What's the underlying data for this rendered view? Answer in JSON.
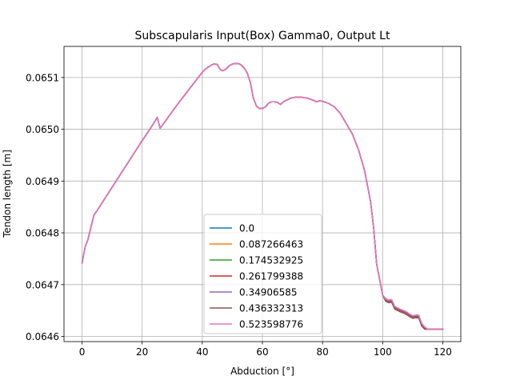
{
  "chart_data": {
    "type": "line",
    "title": "Subscapularis Input(Box) Gamma0, Output Lt",
    "xlabel": "Abduction [°]",
    "ylabel": "Tendon length [m]",
    "xlim": [
      -6,
      126
    ],
    "ylim": [
      0.06459,
      0.06516
    ],
    "xticks": [
      0,
      20,
      40,
      60,
      80,
      100,
      120
    ],
    "xtick_labels": [
      "0",
      "20",
      "40",
      "60",
      "80",
      "100",
      "120"
    ],
    "yticks": [
      0.0646,
      0.0647,
      0.0648,
      0.0649,
      0.065,
      0.0651
    ],
    "ytick_labels": [
      "0.0646",
      "0.0647",
      "0.0648",
      "0.0649",
      "0.0650",
      "0.0651"
    ],
    "grid": true,
    "legend_position": "lower-center",
    "x": [
      0,
      1,
      2,
      3,
      4,
      5,
      6,
      8,
      10,
      12,
      14,
      16,
      18,
      20,
      22,
      24,
      25,
      26,
      27,
      28,
      30,
      32,
      34,
      36,
      38,
      40,
      41,
      42,
      43,
      44,
      45,
      46,
      47,
      48,
      49,
      50,
      51,
      52,
      53,
      54,
      55,
      56,
      57,
      58,
      59,
      60,
      61,
      62,
      63,
      64,
      65,
      66,
      67,
      68,
      69,
      70,
      71,
      72,
      73,
      74,
      75,
      76,
      77,
      78,
      79,
      80,
      82,
      84,
      86,
      88,
      90,
      92,
      94,
      95,
      96,
      97,
      98,
      99,
      100,
      101,
      102,
      103,
      104,
      105,
      106,
      107,
      108,
      109,
      110,
      111,
      112,
      113,
      114,
      115,
      116,
      117,
      118,
      119,
      120
    ],
    "series": [
      {
        "name": "0.0",
        "color": "#1f77b4",
        "values": [
          0.064742,
          0.064772,
          0.064788,
          0.064812,
          0.064835,
          0.064843,
          0.064852,
          0.06487,
          0.064888,
          0.064906,
          0.064924,
          0.064942,
          0.06496,
          0.064978,
          0.064995,
          0.065013,
          0.065023,
          0.065002,
          0.06501,
          0.065018,
          0.065034,
          0.06505,
          0.065065,
          0.06508,
          0.065095,
          0.06511,
          0.065116,
          0.06512,
          0.065124,
          0.065126,
          0.065125,
          0.065115,
          0.065113,
          0.065117,
          0.065123,
          0.065126,
          0.065127,
          0.065127,
          0.065124,
          0.065118,
          0.065108,
          0.06509,
          0.06506,
          0.065045,
          0.06504,
          0.06504,
          0.065043,
          0.06505,
          0.065053,
          0.065053,
          0.065052,
          0.065048,
          0.065053,
          0.065056,
          0.065059,
          0.065061,
          0.065062,
          0.065062,
          0.065062,
          0.065061,
          0.06506,
          0.065058,
          0.065056,
          0.065053,
          0.065055,
          0.065054,
          0.06505,
          0.065043,
          0.06503,
          0.06501,
          0.06499,
          0.06496,
          0.06492,
          0.06489,
          0.06486,
          0.06481,
          0.06474,
          0.06471,
          0.06468,
          0.064673,
          0.06467,
          0.064671,
          0.064658,
          0.064655,
          0.064652,
          0.06465,
          0.064647,
          0.064643,
          0.06464,
          0.064641,
          0.064641,
          0.064625,
          0.064618,
          0.064614,
          0.064614,
          0.064614,
          0.064614,
          0.064614,
          0.064614
        ]
      },
      {
        "name": "0.087266463",
        "color": "#ff7f0e",
        "values": [
          0.064742,
          0.064772,
          0.064788,
          0.064812,
          0.064835,
          0.064843,
          0.064852,
          0.06487,
          0.064888,
          0.064906,
          0.064924,
          0.064942,
          0.06496,
          0.064978,
          0.064995,
          0.065013,
          0.065023,
          0.065002,
          0.06501,
          0.065018,
          0.065034,
          0.06505,
          0.065065,
          0.06508,
          0.065095,
          0.06511,
          0.065116,
          0.06512,
          0.065124,
          0.065126,
          0.065125,
          0.065115,
          0.065113,
          0.065117,
          0.065123,
          0.065126,
          0.065127,
          0.065127,
          0.065124,
          0.065118,
          0.065108,
          0.06509,
          0.06506,
          0.065045,
          0.06504,
          0.06504,
          0.065043,
          0.06505,
          0.065053,
          0.065053,
          0.065052,
          0.065048,
          0.065053,
          0.065056,
          0.065059,
          0.065061,
          0.065062,
          0.065062,
          0.065062,
          0.065061,
          0.06506,
          0.065058,
          0.065056,
          0.065053,
          0.065055,
          0.065054,
          0.06505,
          0.065043,
          0.06503,
          0.06501,
          0.06499,
          0.06496,
          0.06492,
          0.06489,
          0.06486,
          0.06481,
          0.06474,
          0.06471,
          0.06468,
          0.064672,
          0.064669,
          0.06467,
          0.064657,
          0.064654,
          0.064651,
          0.064649,
          0.064646,
          0.064642,
          0.064639,
          0.06464,
          0.06464,
          0.064624,
          0.064617,
          0.064614,
          0.064614,
          0.064614,
          0.064614,
          0.064614,
          0.064614
        ]
      },
      {
        "name": "0.174532925",
        "color": "#2ca02c",
        "values": [
          0.064742,
          0.064772,
          0.064788,
          0.064812,
          0.064835,
          0.064843,
          0.064852,
          0.06487,
          0.064888,
          0.064906,
          0.064924,
          0.064942,
          0.06496,
          0.064978,
          0.064995,
          0.065013,
          0.065023,
          0.065002,
          0.06501,
          0.065018,
          0.065034,
          0.06505,
          0.065065,
          0.06508,
          0.065095,
          0.06511,
          0.065116,
          0.06512,
          0.065124,
          0.065126,
          0.065125,
          0.065115,
          0.065113,
          0.065117,
          0.065123,
          0.065126,
          0.065127,
          0.065127,
          0.065124,
          0.065118,
          0.065108,
          0.06509,
          0.06506,
          0.065045,
          0.06504,
          0.06504,
          0.065043,
          0.06505,
          0.065053,
          0.065053,
          0.065052,
          0.065048,
          0.065053,
          0.065056,
          0.065059,
          0.065061,
          0.065062,
          0.065062,
          0.065062,
          0.065061,
          0.06506,
          0.065058,
          0.065056,
          0.065053,
          0.065055,
          0.065054,
          0.06505,
          0.065043,
          0.06503,
          0.06501,
          0.06499,
          0.06496,
          0.06492,
          0.06489,
          0.06486,
          0.06481,
          0.06474,
          0.06471,
          0.06468,
          0.064671,
          0.064668,
          0.064669,
          0.064656,
          0.064653,
          0.06465,
          0.064648,
          0.064645,
          0.064641,
          0.064638,
          0.064639,
          0.064639,
          0.064623,
          0.064616,
          0.064614,
          0.064614,
          0.064614,
          0.064614,
          0.064614,
          0.064614
        ]
      },
      {
        "name": "0.261799388",
        "color": "#d62728",
        "values": [
          0.064742,
          0.064772,
          0.064788,
          0.064812,
          0.064835,
          0.064843,
          0.064852,
          0.06487,
          0.064888,
          0.064906,
          0.064924,
          0.064942,
          0.06496,
          0.064978,
          0.064995,
          0.065013,
          0.065023,
          0.065002,
          0.06501,
          0.065018,
          0.065034,
          0.06505,
          0.065065,
          0.06508,
          0.065095,
          0.06511,
          0.065116,
          0.06512,
          0.065124,
          0.065126,
          0.065125,
          0.065115,
          0.065113,
          0.065117,
          0.065123,
          0.065126,
          0.065127,
          0.065127,
          0.065124,
          0.065118,
          0.065108,
          0.06509,
          0.06506,
          0.065045,
          0.06504,
          0.06504,
          0.065043,
          0.06505,
          0.065053,
          0.065053,
          0.065052,
          0.065048,
          0.065053,
          0.065056,
          0.065059,
          0.065061,
          0.065062,
          0.065062,
          0.065062,
          0.065061,
          0.06506,
          0.065058,
          0.065056,
          0.065053,
          0.065055,
          0.065054,
          0.06505,
          0.065043,
          0.06503,
          0.06501,
          0.06499,
          0.06496,
          0.06492,
          0.06489,
          0.06486,
          0.06481,
          0.06474,
          0.06471,
          0.06468,
          0.06467,
          0.064667,
          0.064668,
          0.064655,
          0.064652,
          0.064649,
          0.064647,
          0.064644,
          0.06464,
          0.064637,
          0.064638,
          0.064638,
          0.064622,
          0.064615,
          0.064614,
          0.064614,
          0.064614,
          0.064614,
          0.064614,
          0.064614
        ]
      },
      {
        "name": "0.34906585",
        "color": "#9467bd",
        "values": [
          0.064742,
          0.064772,
          0.064788,
          0.064812,
          0.064835,
          0.064843,
          0.064852,
          0.06487,
          0.064888,
          0.064906,
          0.064924,
          0.064942,
          0.06496,
          0.064978,
          0.064995,
          0.065013,
          0.065023,
          0.065002,
          0.06501,
          0.065018,
          0.065034,
          0.06505,
          0.065065,
          0.06508,
          0.065095,
          0.06511,
          0.065116,
          0.06512,
          0.065124,
          0.065126,
          0.065125,
          0.065115,
          0.065113,
          0.065117,
          0.065123,
          0.065126,
          0.065127,
          0.065127,
          0.065124,
          0.065118,
          0.065108,
          0.06509,
          0.06506,
          0.065045,
          0.06504,
          0.06504,
          0.065043,
          0.06505,
          0.065053,
          0.065053,
          0.065052,
          0.065048,
          0.065053,
          0.065056,
          0.065059,
          0.065061,
          0.065062,
          0.065062,
          0.065062,
          0.065061,
          0.06506,
          0.065058,
          0.065056,
          0.065053,
          0.065055,
          0.065054,
          0.06505,
          0.065043,
          0.06503,
          0.06501,
          0.06499,
          0.06496,
          0.06492,
          0.06489,
          0.06486,
          0.06481,
          0.06474,
          0.06471,
          0.06468,
          0.064669,
          0.064666,
          0.064667,
          0.064654,
          0.064651,
          0.064648,
          0.064646,
          0.064643,
          0.064639,
          0.064636,
          0.064637,
          0.064637,
          0.064621,
          0.064614,
          0.064614,
          0.064614,
          0.064614,
          0.064614,
          0.064614,
          0.064614
        ]
      },
      {
        "name": "0.436332313",
        "color": "#8c564b",
        "values": [
          0.064742,
          0.064772,
          0.064788,
          0.064812,
          0.064835,
          0.064843,
          0.064852,
          0.06487,
          0.064888,
          0.064906,
          0.064924,
          0.064942,
          0.06496,
          0.064978,
          0.064995,
          0.065013,
          0.065023,
          0.065002,
          0.06501,
          0.065018,
          0.065034,
          0.06505,
          0.065065,
          0.06508,
          0.065095,
          0.06511,
          0.065116,
          0.06512,
          0.065124,
          0.065126,
          0.065125,
          0.065115,
          0.065113,
          0.065117,
          0.065123,
          0.065126,
          0.065127,
          0.065127,
          0.065124,
          0.065118,
          0.065108,
          0.06509,
          0.06506,
          0.065045,
          0.06504,
          0.06504,
          0.065043,
          0.06505,
          0.065053,
          0.065053,
          0.065052,
          0.065048,
          0.065053,
          0.065056,
          0.065059,
          0.065061,
          0.065062,
          0.065062,
          0.065062,
          0.065061,
          0.06506,
          0.065058,
          0.065056,
          0.065053,
          0.065055,
          0.065054,
          0.06505,
          0.065043,
          0.06503,
          0.06501,
          0.06499,
          0.06496,
          0.06492,
          0.06489,
          0.06486,
          0.06481,
          0.06474,
          0.06471,
          0.06468,
          0.064668,
          0.064665,
          0.064666,
          0.064653,
          0.06465,
          0.064647,
          0.064645,
          0.064642,
          0.064638,
          0.064635,
          0.064636,
          0.064636,
          0.06462,
          0.064614,
          0.064614,
          0.064614,
          0.064614,
          0.064614,
          0.064614,
          0.064614
        ]
      },
      {
        "name": "0.523598776",
        "color": "#e377c2",
        "values": [
          0.064742,
          0.064772,
          0.064788,
          0.064812,
          0.064835,
          0.064843,
          0.064852,
          0.06487,
          0.064888,
          0.064906,
          0.064924,
          0.064942,
          0.06496,
          0.064978,
          0.064995,
          0.065013,
          0.065023,
          0.065002,
          0.06501,
          0.065018,
          0.065034,
          0.06505,
          0.065065,
          0.06508,
          0.065095,
          0.06511,
          0.065116,
          0.06512,
          0.065124,
          0.065126,
          0.065125,
          0.065115,
          0.065113,
          0.065117,
          0.065123,
          0.065126,
          0.065127,
          0.065127,
          0.065124,
          0.065118,
          0.065108,
          0.06509,
          0.06506,
          0.065045,
          0.06504,
          0.06504,
          0.065043,
          0.06505,
          0.065053,
          0.065053,
          0.065052,
          0.065048,
          0.065053,
          0.065056,
          0.065059,
          0.065061,
          0.065062,
          0.065062,
          0.065062,
          0.065061,
          0.06506,
          0.065058,
          0.065056,
          0.065053,
          0.065055,
          0.065054,
          0.06505,
          0.065043,
          0.06503,
          0.06501,
          0.06499,
          0.06496,
          0.06492,
          0.06489,
          0.06486,
          0.06481,
          0.06474,
          0.06471,
          0.06468,
          0.064672,
          0.06467,
          0.064671,
          0.064658,
          0.064655,
          0.064652,
          0.06465,
          0.064647,
          0.064643,
          0.06464,
          0.064641,
          0.064641,
          0.064625,
          0.064618,
          0.064614,
          0.064614,
          0.064614,
          0.064614,
          0.064614,
          0.064614
        ]
      }
    ]
  }
}
